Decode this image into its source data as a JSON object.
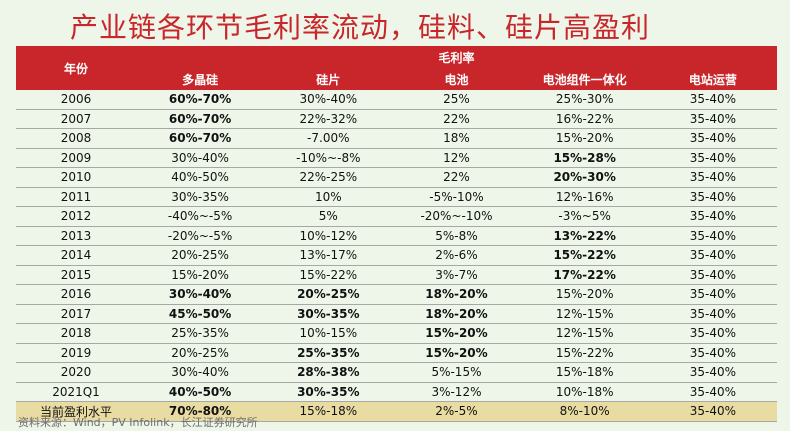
{
  "title": "产业链各环节毛利率流动，硅料、硅片高盈利",
  "table": {
    "year_header": "年份",
    "group_header": "毛利率",
    "columns": [
      "多晶硅",
      "硅片",
      "电池",
      "电池组件一体化",
      "电站运营"
    ],
    "rows": [
      {
        "year": "2006",
        "cells": [
          {
            "v": "60%-70%",
            "hl": true
          },
          {
            "v": "30%-40%"
          },
          {
            "v": "25%"
          },
          {
            "v": "25%-30%"
          },
          {
            "v": "35-40%"
          }
        ]
      },
      {
        "year": "2007",
        "cells": [
          {
            "v": "60%-70%",
            "hl": true
          },
          {
            "v": "22%-32%"
          },
          {
            "v": "22%"
          },
          {
            "v": "16%-22%"
          },
          {
            "v": "35-40%"
          }
        ]
      },
      {
        "year": "2008",
        "cells": [
          {
            "v": "60%-70%",
            "hl": true
          },
          {
            "v": "-7.00%"
          },
          {
            "v": "18%"
          },
          {
            "v": "15%-20%"
          },
          {
            "v": "35-40%"
          }
        ]
      },
      {
        "year": "2009",
        "cells": [
          {
            "v": "30%-40%"
          },
          {
            "v": "-10%~-8%"
          },
          {
            "v": "12%"
          },
          {
            "v": "15%-28%",
            "hl": true
          },
          {
            "v": "35-40%"
          }
        ]
      },
      {
        "year": "2010",
        "cells": [
          {
            "v": "40%-50%"
          },
          {
            "v": "22%-25%"
          },
          {
            "v": "22%"
          },
          {
            "v": "20%-30%",
            "hl": true
          },
          {
            "v": "35-40%"
          }
        ]
      },
      {
        "year": "2011",
        "cells": [
          {
            "v": "30%-35%"
          },
          {
            "v": "10%"
          },
          {
            "v": "-5%-10%"
          },
          {
            "v": "12%-16%"
          },
          {
            "v": "35-40%"
          }
        ]
      },
      {
        "year": "2012",
        "cells": [
          {
            "v": "-40%~-5%"
          },
          {
            "v": "5%"
          },
          {
            "v": "-20%~-10%"
          },
          {
            "v": "-3%~5%"
          },
          {
            "v": "35-40%"
          }
        ]
      },
      {
        "year": "2013",
        "cells": [
          {
            "v": "-20%~-5%"
          },
          {
            "v": "10%-12%"
          },
          {
            "v": "5%-8%"
          },
          {
            "v": "13%-22%",
            "hl": true
          },
          {
            "v": "35-40%"
          }
        ]
      },
      {
        "year": "2014",
        "cells": [
          {
            "v": "20%-25%"
          },
          {
            "v": "13%-17%"
          },
          {
            "v": "2%-6%"
          },
          {
            "v": "15%-22%",
            "hl": true
          },
          {
            "v": "35-40%"
          }
        ]
      },
      {
        "year": "2015",
        "cells": [
          {
            "v": "15%-20%"
          },
          {
            "v": "15%-22%"
          },
          {
            "v": "3%-7%"
          },
          {
            "v": "17%-22%",
            "hl": true
          },
          {
            "v": "35-40%"
          }
        ]
      },
      {
        "year": "2016",
        "cells": [
          {
            "v": "30%-40%",
            "hl": true
          },
          {
            "v": "20%-25%",
            "hl": true
          },
          {
            "v": "18%-20%",
            "hl": true
          },
          {
            "v": "15%-20%"
          },
          {
            "v": "35-40%"
          }
        ]
      },
      {
        "year": "2017",
        "cells": [
          {
            "v": "45%-50%",
            "hl": true
          },
          {
            "v": "30%-35%",
            "hl": true
          },
          {
            "v": "18%-20%",
            "hl": true
          },
          {
            "v": "12%-15%"
          },
          {
            "v": "35-40%"
          }
        ]
      },
      {
        "year": "2018",
        "cells": [
          {
            "v": "25%-35%"
          },
          {
            "v": "10%-15%"
          },
          {
            "v": "15%-20%",
            "hl": true
          },
          {
            "v": "12%-15%"
          },
          {
            "v": "35-40%"
          }
        ]
      },
      {
        "year": "2019",
        "cells": [
          {
            "v": "20%-25%"
          },
          {
            "v": "25%-35%",
            "hl": true
          },
          {
            "v": "15%-20%",
            "hl": true
          },
          {
            "v": "15%-22%"
          },
          {
            "v": "35-40%"
          }
        ]
      },
      {
        "year": "2020",
        "cells": [
          {
            "v": "30%-40%"
          },
          {
            "v": "28%-38%",
            "hl": true
          },
          {
            "v": "5%-15%"
          },
          {
            "v": "15%-18%"
          },
          {
            "v": "35-40%"
          }
        ]
      },
      {
        "year": "2021Q1",
        "cells": [
          {
            "v": "40%-50%",
            "hl": true
          },
          {
            "v": "30%-35%",
            "hl": true
          },
          {
            "v": "3%-12%"
          },
          {
            "v": "10%-18%"
          },
          {
            "v": "35-40%"
          }
        ]
      }
    ],
    "summary": {
      "year": "当前盈利水平",
      "cells": [
        {
          "v": "70%-80%",
          "hl": true
        },
        {
          "v": "15%-18%"
        },
        {
          "v": "2%-5%"
        },
        {
          "v": "8%-10%"
        },
        {
          "v": "35-40%"
        }
      ]
    }
  },
  "source": "资料来源：Wind，PV Infolink，长江证券研究所",
  "colors": {
    "header_bg": "#c8262a",
    "highlight_text": "#e3262b",
    "summary_bg": "#e9dca3",
    "page_bg": "#eef6ea"
  }
}
